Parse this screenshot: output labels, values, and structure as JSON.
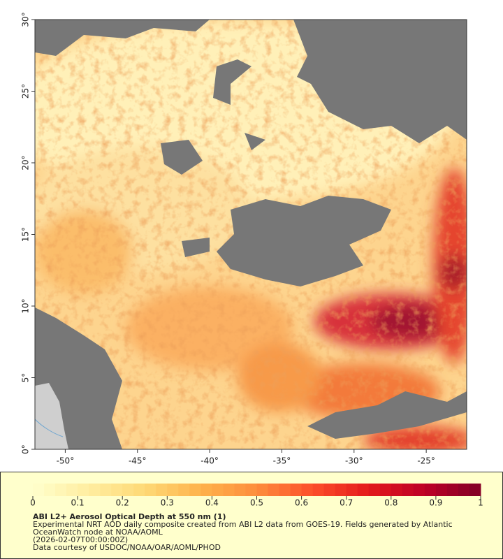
{
  "map": {
    "x_axis": {
      "lim": [
        -52.1,
        -22.2
      ],
      "ticks": [
        {
          "value": -50,
          "label": "-50°"
        },
        {
          "value": -45,
          "label": "-45°"
        },
        {
          "value": -40,
          "label": "-40°"
        },
        {
          "value": -35,
          "label": "-35°"
        },
        {
          "value": -30,
          "label": "-30°"
        },
        {
          "value": -25,
          "label": "-25°"
        }
      ]
    },
    "y_axis": {
      "lim": [
        0,
        30
      ],
      "ticks": [
        {
          "value": 0,
          "label": "0°"
        },
        {
          "value": 5,
          "label": "5°"
        },
        {
          "value": 10,
          "label": "10°"
        },
        {
          "value": 15,
          "label": "15°"
        },
        {
          "value": 20,
          "label": "20°"
        },
        {
          "value": 25,
          "label": "25°"
        },
        {
          "value": 30,
          "label": "30°"
        }
      ]
    },
    "colorbar": {
      "lim": [
        0,
        1
      ],
      "ticks": [
        0,
        0.1,
        0.2,
        0.3,
        0.4,
        0.5,
        0.6,
        0.7,
        0.8,
        0.9,
        1
      ],
      "colormap": [
        "#ffffcc",
        "#ffeda0",
        "#fed976",
        "#feb24c",
        "#fd8d3c",
        "#fc4e2a",
        "#e31a1c",
        "#bd0026",
        "#800026"
      ]
    },
    "title": "ABI L2+ Aerosol Optical Depth at 550 nm (1)",
    "description": [
      "Experimental NRT AOD daily composite created from ABI L2 data from GOES-19. Fields generated by Atlantic",
      "OceanWatch node at NOAA/AOML",
      "(2026-02-07T00:00:00Z)",
      "Data courtesy of USDOC/NOAA/OAR/AOML/PHOD"
    ]
  }
}
